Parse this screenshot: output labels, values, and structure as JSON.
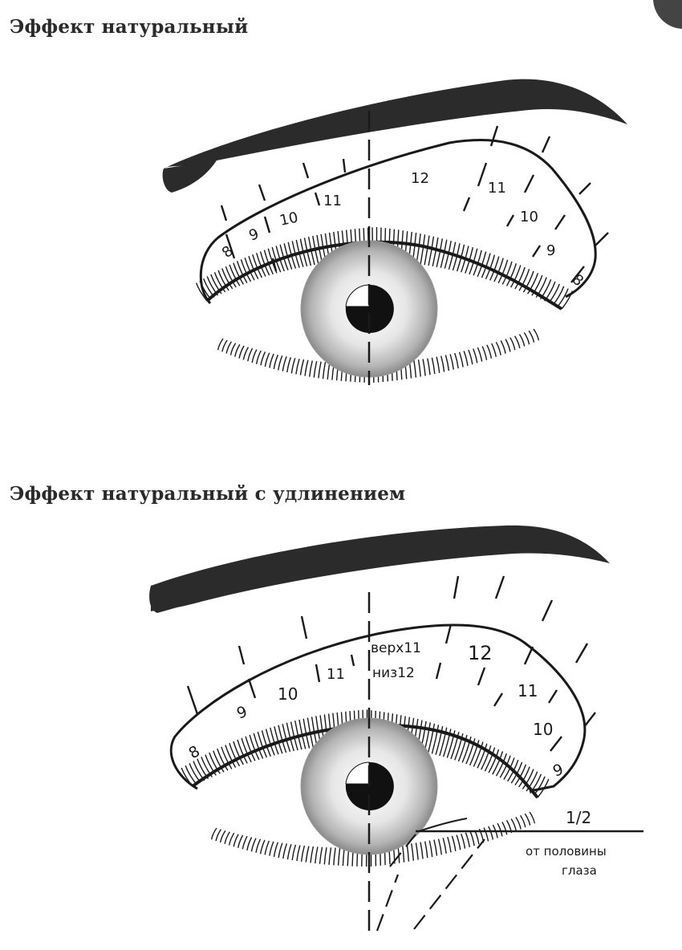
{
  "sections": [
    {
      "title": "Эффект натуральный",
      "labels": [
        "8",
        "9",
        "10",
        "11",
        "12",
        "11",
        "10",
        "9",
        "8"
      ]
    },
    {
      "title": "Эффект натуральный с удлинением",
      "labels": [
        "8",
        "9",
        "10",
        "11",
        "верх11",
        "низ12",
        "12",
        "11",
        "10",
        "9"
      ],
      "annotation": {
        "fraction": "1/2",
        "line1": "от половины",
        "line2": "глаза"
      }
    }
  ],
  "colors": {
    "ink": "#1a1a1a",
    "brow": "#2b2b2b",
    "iris_edge": "#8a8a8a"
  }
}
